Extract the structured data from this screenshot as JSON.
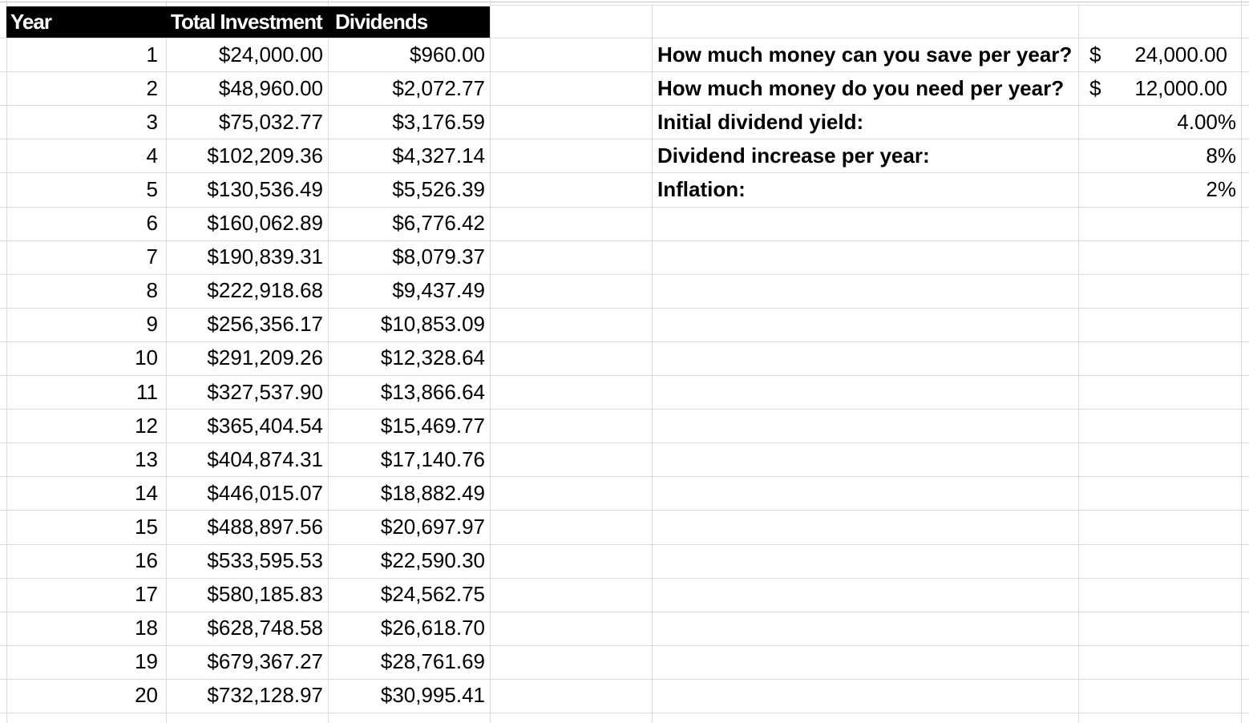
{
  "sheet": {
    "header": {
      "year": "Year",
      "total_investment": "Total Investment",
      "dividends": "Dividends"
    },
    "rows": [
      {
        "year": "1",
        "total_investment": "$24,000.00",
        "dividends": "$960.00"
      },
      {
        "year": "2",
        "total_investment": "$48,960.00",
        "dividends": "$2,072.77"
      },
      {
        "year": "3",
        "total_investment": "$75,032.77",
        "dividends": "$3,176.59"
      },
      {
        "year": "4",
        "total_investment": "$102,209.36",
        "dividends": "$4,327.14"
      },
      {
        "year": "5",
        "total_investment": "$130,536.49",
        "dividends": "$5,526.39"
      },
      {
        "year": "6",
        "total_investment": "$160,062.89",
        "dividends": "$6,776.42"
      },
      {
        "year": "7",
        "total_investment": "$190,839.31",
        "dividends": "$8,079.37"
      },
      {
        "year": "8",
        "total_investment": "$222,918.68",
        "dividends": "$9,437.49"
      },
      {
        "year": "9",
        "total_investment": "$256,356.17",
        "dividends": "$10,853.09"
      },
      {
        "year": "10",
        "total_investment": "$291,209.26",
        "dividends": "$12,328.64"
      },
      {
        "year": "11",
        "total_investment": "$327,537.90",
        "dividends": "$13,866.64"
      },
      {
        "year": "12",
        "total_investment": "$365,404.54",
        "dividends": "$15,469.77"
      },
      {
        "year": "13",
        "total_investment": "$404,874.31",
        "dividends": "$17,140.76"
      },
      {
        "year": "14",
        "total_investment": "$446,015.07",
        "dividends": "$18,882.49"
      },
      {
        "year": "15",
        "total_investment": "$488,897.56",
        "dividends": "$20,697.97"
      },
      {
        "year": "16",
        "total_investment": "$533,595.53",
        "dividends": "$22,590.30"
      },
      {
        "year": "17",
        "total_investment": "$580,185.83",
        "dividends": "$24,562.75"
      },
      {
        "year": "18",
        "total_investment": "$628,748.58",
        "dividends": "$26,618.70"
      },
      {
        "year": "19",
        "total_investment": "$679,367.27",
        "dividends": "$28,761.69"
      },
      {
        "year": "20",
        "total_investment": "$732,128.97",
        "dividends": "$30,995.41"
      }
    ],
    "inputs": [
      {
        "label": "How much money can you save per year?",
        "currency": "$",
        "value": "24,000.00"
      },
      {
        "label": "How much money do you need per year?",
        "currency": "$",
        "value": "12,000.00"
      },
      {
        "label": "Initial dividend yield:",
        "currency": "",
        "value": "4.00%"
      },
      {
        "label": "Dividend increase per year:",
        "currency": "",
        "value": "8%"
      },
      {
        "label": "Inflation:",
        "currency": "",
        "value": "2%"
      }
    ],
    "colors": {
      "header_bg": "#000000",
      "header_text": "#ffffff",
      "gridline": "#dcdcdc",
      "top_gridline": "#c6c6c6",
      "text": "#000000",
      "background": "#ffffff"
    }
  }
}
